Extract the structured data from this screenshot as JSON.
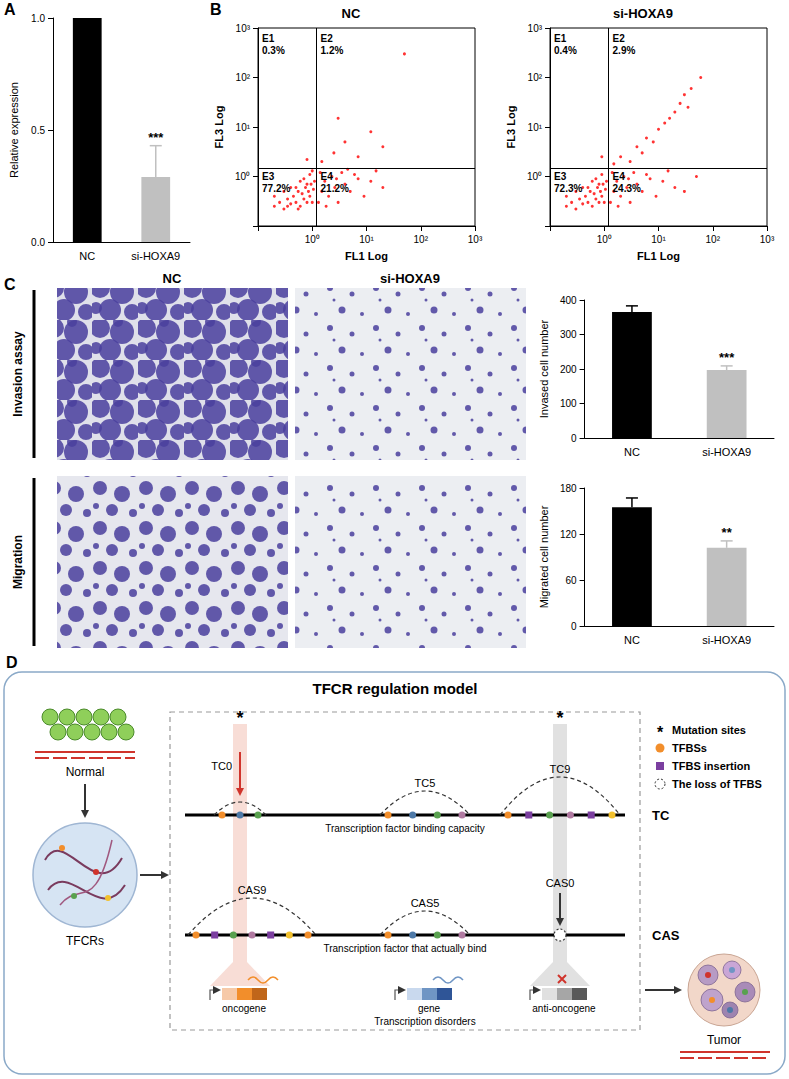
{
  "panel_labels": [
    "A",
    "B",
    "C",
    "D"
  ],
  "chart_data": [
    {
      "type": "bar",
      "categories": [
        "NC",
        "si-HOXA9"
      ],
      "values": [
        1.0,
        0.29
      ],
      "errors": [
        0,
        0.14
      ],
      "colors": [
        "#000000",
        "#c0c0c0"
      ],
      "ylabel": "Relative expression",
      "ylim": [
        0,
        1.0
      ],
      "yticks": [
        {
          "value": 0,
          "label": "0.0"
        },
        {
          "value": 0.5,
          "label": "0.5"
        },
        {
          "value": 1.0,
          "label": "1.0"
        }
      ],
      "annotations": [
        {
          "category": "si-HOXA9",
          "text": "***"
        }
      ]
    },
    {
      "type": "scatter",
      "title": "NC",
      "xlabel": "FL1 Log",
      "ylabel": "FL3 Log",
      "log": true,
      "color": "#ff0000",
      "xlim": [
        0.1,
        1000
      ],
      "ylim": [
        0.1,
        1000
      ],
      "xticks": [
        {
          "value": 1,
          "label": "10⁰"
        },
        {
          "value": 10,
          "label": "10¹"
        },
        {
          "value": 100,
          "label": "10²"
        },
        {
          "value": 1000,
          "label": "10³"
        }
      ],
      "yticks": [
        {
          "value": 1,
          "label": "10⁰"
        },
        {
          "value": 10,
          "label": "10¹"
        },
        {
          "value": 100,
          "label": "10²"
        },
        {
          "value": 1000,
          "label": "10³"
        }
      ],
      "gates": {
        "x": 1.2,
        "y": 1.5
      },
      "quadrants": {
        "names": [
          "E1",
          "E2",
          "E3",
          "E4"
        ],
        "values": [
          0.3,
          1.2,
          77.2,
          21.2
        ],
        "value_labels": [
          "0.3%",
          "1.2%",
          "77.2%",
          "21.2%"
        ]
      },
      "points": [
        [
          0.2,
          0.25
        ],
        [
          0.25,
          0.3
        ],
        [
          0.3,
          0.22
        ],
        [
          0.35,
          0.35
        ],
        [
          0.4,
          0.28
        ],
        [
          0.45,
          0.4
        ],
        [
          0.5,
          0.3
        ],
        [
          0.55,
          0.5
        ],
        [
          0.6,
          0.25
        ],
        [
          0.65,
          0.45
        ],
        [
          0.7,
          0.35
        ],
        [
          0.75,
          0.6
        ],
        [
          0.8,
          0.3
        ],
        [
          0.85,
          0.5
        ],
        [
          0.9,
          0.4
        ],
        [
          0.95,
          0.7
        ],
        [
          1.0,
          0.3
        ],
        [
          1.05,
          0.55
        ],
        [
          1.1,
          0.8
        ],
        [
          0.3,
          0.5
        ],
        [
          0.5,
          0.6
        ],
        [
          0.7,
          0.9
        ],
        [
          0.9,
          1.1
        ],
        [
          1.0,
          1.3
        ],
        [
          0.6,
          0.8
        ],
        [
          0.4,
          0.6
        ],
        [
          0.8,
          0.7
        ],
        [
          0.2,
          0.4
        ],
        [
          0.35,
          0.25
        ],
        [
          0.55,
          0.22
        ],
        [
          1.3,
          0.3
        ],
        [
          1.5,
          0.5
        ],
        [
          1.7,
          0.8
        ],
        [
          2,
          0.4
        ],
        [
          2.3,
          1.0
        ],
        [
          2.6,
          0.6
        ],
        [
          3,
          0.3
        ],
        [
          3.5,
          1.2
        ],
        [
          4,
          0.7
        ],
        [
          5,
          0.5
        ],
        [
          6,
          1.1
        ],
        [
          7,
          0.9
        ],
        [
          9,
          0.4
        ],
        [
          12,
          0.8
        ],
        [
          15,
          1.3
        ],
        [
          20,
          0.6
        ],
        [
          1.4,
          1.2
        ],
        [
          1.8,
          0.25
        ],
        [
          2.8,
          0.9
        ],
        [
          4.5,
          1.4
        ],
        [
          1.5,
          2
        ],
        [
          2.5,
          3
        ],
        [
          4,
          5
        ],
        [
          7,
          2.5
        ],
        [
          12,
          8
        ],
        [
          3,
          15
        ],
        [
          20,
          4
        ],
        [
          50,
          300
        ],
        [
          0.8,
          2.2
        ]
      ]
    },
    {
      "type": "scatter",
      "title": "si-HOXA9",
      "xlabel": "FL1 Log",
      "ylabel": "FL3 Log",
      "log": true,
      "color": "#ff0000",
      "xlim": [
        0.1,
        1000
      ],
      "ylim": [
        0.1,
        1000
      ],
      "xticks": [
        {
          "value": 1,
          "label": "10⁰"
        },
        {
          "value": 10,
          "label": "10¹"
        },
        {
          "value": 100,
          "label": "10²"
        },
        {
          "value": 1000,
          "label": "10³"
        }
      ],
      "yticks": [
        {
          "value": 1,
          "label": "10⁰"
        },
        {
          "value": 10,
          "label": "10¹"
        },
        {
          "value": 100,
          "label": "10²"
        },
        {
          "value": 1000,
          "label": "10³"
        }
      ],
      "gates": {
        "x": 1.2,
        "y": 1.5
      },
      "quadrants": {
        "names": [
          "E1",
          "E2",
          "E3",
          "E4"
        ],
        "values": [
          0.4,
          2.9,
          72.3,
          24.3
        ],
        "value_labels": [
          "0.4%",
          "2.9%",
          "72.3%",
          "24.3%"
        ]
      },
      "points": [
        [
          0.2,
          0.25
        ],
        [
          0.25,
          0.3
        ],
        [
          0.3,
          0.22
        ],
        [
          0.35,
          0.35
        ],
        [
          0.4,
          0.28
        ],
        [
          0.45,
          0.4
        ],
        [
          0.5,
          0.3
        ],
        [
          0.55,
          0.5
        ],
        [
          0.6,
          0.25
        ],
        [
          0.65,
          0.45
        ],
        [
          0.7,
          0.35
        ],
        [
          0.75,
          0.6
        ],
        [
          0.8,
          0.3
        ],
        [
          0.85,
          0.5
        ],
        [
          0.9,
          0.4
        ],
        [
          0.95,
          0.7
        ],
        [
          1.0,
          0.3
        ],
        [
          1.05,
          0.55
        ],
        [
          1.1,
          0.8
        ],
        [
          0.3,
          0.5
        ],
        [
          0.5,
          0.6
        ],
        [
          0.7,
          0.9
        ],
        [
          0.9,
          1.1
        ],
        [
          0.6,
          0.8
        ],
        [
          0.4,
          0.6
        ],
        [
          0.8,
          0.7
        ],
        [
          0.2,
          0.4
        ],
        [
          1.3,
          0.3
        ],
        [
          1.5,
          0.5
        ],
        [
          1.7,
          0.8
        ],
        [
          2,
          0.4
        ],
        [
          2.3,
          1.0
        ],
        [
          2.6,
          0.6
        ],
        [
          3,
          0.3
        ],
        [
          3.5,
          1.2
        ],
        [
          4,
          0.7
        ],
        [
          5,
          0.5
        ],
        [
          6,
          1.1
        ],
        [
          7,
          0.9
        ],
        [
          9,
          0.4
        ],
        [
          12,
          0.8
        ],
        [
          15,
          1.3
        ],
        [
          20,
          0.6
        ],
        [
          30,
          0.5
        ],
        [
          50,
          1.0
        ],
        [
          1.4,
          1.2
        ],
        [
          1.8,
          0.25
        ],
        [
          2.8,
          0.9
        ],
        [
          1.5,
          1.8
        ],
        [
          2,
          2.5
        ],
        [
          3,
          2
        ],
        [
          4,
          4
        ],
        [
          5,
          3
        ],
        [
          6,
          6
        ],
        [
          8,
          5
        ],
        [
          10,
          9
        ],
        [
          13,
          12
        ],
        [
          16,
          15
        ],
        [
          20,
          20
        ],
        [
          25,
          30
        ],
        [
          30,
          45
        ],
        [
          40,
          60
        ],
        [
          35,
          25
        ],
        [
          60,
          100
        ],
        [
          0.9,
          2.5
        ]
      ]
    },
    {
      "type": "bar",
      "categories": [
        "NC",
        "si-HOXA9"
      ],
      "values": [
        365,
        197
      ],
      "errors": [
        18,
        12
      ],
      "colors": [
        "#000000",
        "#c0c0c0"
      ],
      "ylabel": "Invased cell number",
      "ylim": [
        0,
        400
      ],
      "yticks": [
        0,
        100,
        200,
        300,
        400
      ],
      "annotations": [
        {
          "category": "si-HOXA9",
          "text": "***"
        }
      ]
    },
    {
      "type": "bar",
      "categories": [
        "NC",
        "si-HOXA9"
      ],
      "values": [
        155,
        102
      ],
      "errors": [
        12,
        9
      ],
      "colors": [
        "#000000",
        "#c0c0c0"
      ],
      "ylabel": "Migrated cell number",
      "ylim": [
        0,
        180
      ],
      "yticks": [
        0,
        60,
        120,
        180
      ],
      "annotations": [
        {
          "category": "si-HOXA9",
          "text": "**"
        }
      ]
    }
  ],
  "panel_c_images": {
    "columns": [
      "NC",
      "si-HOXA9"
    ],
    "rows": [
      "Invasion assay",
      "Migration"
    ]
  },
  "diagram": {
    "title": "TFCR regulation model",
    "stages": [
      "Normal",
      "TFCRs",
      "Tumor"
    ],
    "mutation_symbol": "*",
    "key": [
      "Mutation sites",
      "TFBSs",
      "TFBS insertion",
      "The loss of TFBS"
    ],
    "tracks": [
      {
        "name": "TC",
        "caption": "Transcription factor binding capacity",
        "peaks": [
          "TC0",
          "TC5",
          "TC9"
        ]
      },
      {
        "name": "CAS",
        "caption": "Transcription factor that actually bind",
        "peaks": [
          "CAS9",
          "CAS5",
          "CAS0"
        ]
      }
    ],
    "genes": [
      "oncogene",
      "gene",
      "anti-oncogene"
    ],
    "genes_caption": "Transcription disorders"
  }
}
